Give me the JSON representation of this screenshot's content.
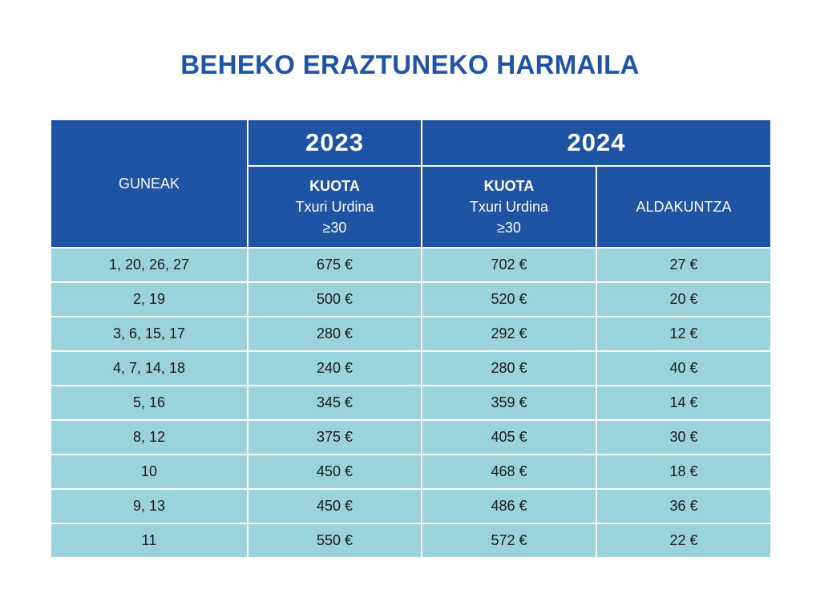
{
  "title": "BEHEKO ERAZTUNEKO HARMAILA",
  "header": {
    "col_guneak": "GUNEAK",
    "year_2023": "2023",
    "year_2024": "2024",
    "kuota_label": "KUOTA",
    "kuota_sub1": "Txuri Urdina",
    "kuota_sub2": "≥30",
    "aldakuntza": "ALDAKUNTZA"
  },
  "rows": [
    {
      "gunea": "1, 20, 26, 27",
      "k2023": "675 €",
      "k2024": "702 €",
      "aldaketa": "27 €"
    },
    {
      "gunea": "2, 19",
      "k2023": "500 €",
      "k2024": "520 €",
      "aldaketa": "20 €"
    },
    {
      "gunea": "3, 6, 15, 17",
      "k2023": "280 €",
      "k2024": "292 €",
      "aldaketa": "12 €"
    },
    {
      "gunea": "4, 7, 14, 18",
      "k2023": "240 €",
      "k2024": "280 €",
      "aldaketa": "40 €"
    },
    {
      "gunea": "5, 16",
      "k2023": "345 €",
      "k2024": "359 €",
      "aldaketa": "14 €"
    },
    {
      "gunea": "8, 12",
      "k2023": "375 €",
      "k2024": "405 €",
      "aldaketa": "30 €"
    },
    {
      "gunea": "10",
      "k2023": "450 €",
      "k2024": "468 €",
      "aldaketa": "18 €"
    },
    {
      "gunea": "9, 13",
      "k2023": "450 €",
      "k2024": "486 €",
      "aldaketa": "36 €"
    },
    {
      "gunea": "11",
      "k2023": "550 €",
      "k2024": "572 €",
      "aldaketa": "22 €"
    }
  ],
  "colors": {
    "header_bg": "#1f53a3",
    "row_bg": "#9bd3dc",
    "title": "#1f53a3"
  }
}
